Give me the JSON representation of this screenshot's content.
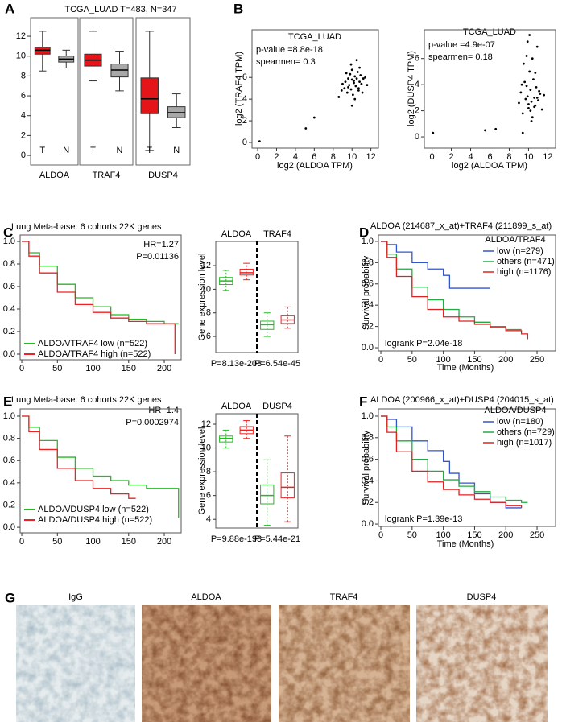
{
  "chart_data": [
    {
      "type": "box",
      "panel": "A",
      "title": "TCGA_LUAD T=483, N=347",
      "categories": [
        "ALDOA",
        "TRAF4",
        "DUSP4"
      ],
      "fill": true,
      "series": [
        {
          "name": "T",
          "color": "#e41418",
          "min": [
            8.5,
            7.5,
            0.5
          ],
          "q1": [
            10.2,
            9.0,
            4.2
          ],
          "median": [
            10.6,
            9.6,
            5.7
          ],
          "q3": [
            10.9,
            10.2,
            7.8
          ],
          "max": [
            12.5,
            12.5,
            12.5
          ]
        },
        {
          "name": "N",
          "color": "#a8a8a8",
          "min": [
            8.8,
            6.5,
            2.8
          ],
          "q1": [
            9.4,
            7.9,
            3.8
          ],
          "median": [
            9.7,
            8.6,
            4.3
          ],
          "q3": [
            10.0,
            9.2,
            4.9
          ],
          "max": [
            10.6,
            10.5,
            6.2
          ]
        }
      ],
      "ylim": [
        -0.97,
        13.87
      ],
      "yticks": [
        0,
        2,
        4,
        6,
        8,
        10,
        12
      ]
    },
    {
      "type": "scatter",
      "panel": "B",
      "title": "TCGA_LUAD",
      "xlabel": "log2 (ALDOA TPM)",
      "ylabel": "log2 (TRAF4 TPM)",
      "annotations": [
        "p-value =8.8e-18",
        "spearmen= 0.3"
      ],
      "color": "#000000",
      "x": [
        0.2,
        5.1,
        6.0,
        8.6,
        8.9,
        9.2,
        9.3,
        9.5,
        9.6,
        9.7,
        9.8,
        9.9,
        10.0,
        10.0,
        10.1,
        10.2,
        10.3,
        10.4,
        10.5,
        10.6,
        10.7,
        10.8,
        10.9,
        11.0,
        11.2,
        11.4,
        9.4,
        9.9,
        10.3,
        10.8,
        11.1,
        10.5,
        10.0,
        9.6,
        10.2,
        11.6,
        9.0,
        10.7
      ],
      "values": [
        0.1,
        1.3,
        2.3,
        4.2,
        4.8,
        5.0,
        5.6,
        4.6,
        5.9,
        5.3,
        6.3,
        4.9,
        5.8,
        6.7,
        4.4,
        5.5,
        6.1,
        5.2,
        5.9,
        6.5,
        4.8,
        5.6,
        6.2,
        5.4,
        5.9,
        6.0,
        6.4,
        7.2,
        4.0,
        6.9,
        4.6,
        7.6,
        3.4,
        5.1,
        5.7,
        5.3,
        5.4,
        5.0
      ],
      "xlim": [
        -0.6,
        12.8
      ],
      "xticks": [
        0,
        2,
        4,
        6,
        8,
        10,
        12
      ],
      "ylim": [
        -0.52,
        10.4
      ],
      "yticks": [
        0,
        2,
        4,
        6
      ]
    },
    {
      "type": "scatter",
      "title": "TCGA_LUAD",
      "xlabel": "log2 (ALDOA TPM)",
      "ylabel": "log2 (DUSP4 TPM)",
      "annotations": [
        "p-value =4.9e-07",
        "spearmen= 0.18"
      ],
      "color": "#000000",
      "x": [
        0.1,
        5.5,
        6.6,
        9.4,
        9.0,
        9.2,
        9.4,
        9.6,
        9.7,
        9.8,
        9.9,
        10.0,
        10.1,
        10.2,
        10.3,
        10.4,
        10.5,
        10.6,
        10.7,
        10.8,
        10.9,
        11.0,
        11.2,
        11.4,
        9.5,
        9.9,
        10.3,
        10.7,
        11.1,
        10.0,
        9.8,
        10.4,
        10.2,
        11.6,
        9.3,
        10.6,
        10.9,
        10.1
      ],
      "values": [
        0.3,
        0.5,
        0.6,
        0.3,
        2.6,
        3.4,
        1.8,
        4.2,
        2.9,
        6.2,
        3.1,
        2.2,
        5.0,
        3.6,
        2.7,
        1.5,
        4.4,
        3.0,
        2.4,
        3.8,
        6.9,
        2.8,
        3.3,
        2.1,
        5.6,
        7.3,
        1.2,
        4.9,
        3.5,
        2.5,
        3.9,
        6.0,
        2.0,
        3.2,
        4.0,
        2.3,
        3.0,
        7.8
      ],
      "xlim": [
        -0.8,
        12.8
      ],
      "xticks": [
        0,
        2,
        4,
        6,
        8,
        10,
        12
      ],
      "ylim": [
        -0.86,
        8.2
      ],
      "yticks": [
        0,
        2,
        4,
        6
      ]
    },
    {
      "type": "line",
      "panel": "C",
      "title": "Lung Meta-base: 6 cohorts 22K genes",
      "annotations": [
        "HR=1.27",
        "P=0.01136"
      ],
      "legend": "lower left",
      "series": [
        {
          "name": "ALDOA/TRAF4 low (n=522)",
          "color": "#22bb22",
          "x": [
            0,
            10,
            25,
            50,
            75,
            100,
            125,
            150,
            175,
            200,
            220
          ],
          "values": [
            1.0,
            0.9,
            0.78,
            0.62,
            0.5,
            0.42,
            0.35,
            0.31,
            0.29,
            0.27,
            0.27
          ]
        },
        {
          "name": "ALDOA/TRAF4 high (n=522)",
          "color": "#ee2222",
          "x": [
            0,
            10,
            25,
            50,
            75,
            100,
            125,
            150,
            175,
            215,
            215
          ],
          "values": [
            1.0,
            0.87,
            0.72,
            0.55,
            0.44,
            0.37,
            0.32,
            0.29,
            0.27,
            0.27,
            0.0
          ]
        }
      ],
      "xlim": [
        -2.3,
        223.7
      ],
      "xticks": [
        0,
        50,
        100,
        150,
        200
      ],
      "ylim": [
        -0.05,
        1.057
      ],
      "yticks": [
        {
          "value": 0,
          "label": "0.0"
        },
        0.2,
        0.4,
        0.6,
        0.8,
        {
          "value": 1,
          "label": "1.0"
        }
      ]
    },
    {
      "type": "box",
      "ylabel": "Gene expression level",
      "categories": [
        "ALDOA",
        "TRAF4"
      ],
      "footnotes": [
        "P=8.13e-203",
        "P=6.54e-45"
      ],
      "fill": false,
      "series": [
        {
          "color": "#22bb22",
          "min": [
            9.9,
            6.0
          ],
          "q1": [
            10.4,
            6.6
          ],
          "median": [
            10.7,
            7.0
          ],
          "q3": [
            11.0,
            7.3
          ],
          "max": [
            11.6,
            8.0
          ]
        },
        {
          "color": "#ee2222",
          "min": [
            10.8,
            6.7
          ],
          "q1": [
            11.2,
            7.1
          ],
          "median": [
            11.4,
            7.4
          ],
          "q3": [
            11.7,
            7.8
          ],
          "max": [
            12.2,
            8.5
          ]
        }
      ],
      "ylim": [
        4.64,
        14.05
      ],
      "yticks": [
        6,
        8,
        10,
        12
      ]
    },
    {
      "type": "line",
      "panel": "D",
      "title": "ALDOA (214687_x_at)+TRAF4 (211899_s_at)",
      "legend_title": "ALDOA/TRAF4",
      "legend": "upper right",
      "xlabel": "Time (Months)",
      "ylabel": "Survival probability",
      "annotations": [
        "logrank P=2.04e-18"
      ],
      "series": [
        {
          "name": "low (n=279)",
          "color": "#3355cc",
          "x": [
            0,
            10,
            25,
            50,
            75,
            100,
            110,
            125,
            150,
            175
          ],
          "values": [
            1.0,
            0.97,
            0.9,
            0.8,
            0.74,
            0.68,
            0.56,
            0.56,
            0.56,
            0.56
          ]
        },
        {
          "name": "others (n=471)",
          "color": "#22aa44",
          "x": [
            0,
            10,
            25,
            50,
            75,
            100,
            125,
            150,
            175,
            200,
            225
          ],
          "values": [
            1.0,
            0.88,
            0.74,
            0.57,
            0.45,
            0.36,
            0.29,
            0.24,
            0.2,
            0.17,
            0.17
          ]
        },
        {
          "name": "high (n=1176)",
          "color": "#dd2222",
          "x": [
            0,
            10,
            25,
            50,
            75,
            100,
            125,
            150,
            175,
            200,
            225,
            235
          ],
          "values": [
            1.0,
            0.85,
            0.67,
            0.48,
            0.36,
            0.29,
            0.25,
            0.22,
            0.19,
            0.16,
            0.13,
            0.08
          ]
        }
      ],
      "xlim": [
        -3.9,
        279.6
      ],
      "xticks": [
        0,
        50,
        100,
        150,
        200,
        250
      ],
      "ylim": [
        -0.03,
        1.06
      ],
      "yticks": [
        {
          "value": 0,
          "label": "0.0"
        },
        0.2,
        0.4,
        0.6,
        0.8,
        {
          "value": 1,
          "label": "1.0"
        }
      ]
    },
    {
      "type": "line",
      "panel": "E",
      "title": "Lung Meta-base: 6 cohorts 22K genes",
      "annotations": [
        "HR=1.4",
        "P=0.0002974"
      ],
      "legend": "lower left",
      "series": [
        {
          "name": "ALDOA/DUSP4 low (n=522)",
          "color": "#22bb22",
          "x": [
            0,
            10,
            25,
            50,
            75,
            100,
            125,
            150,
            175,
            200,
            220,
            220
          ],
          "values": [
            1.0,
            0.9,
            0.78,
            0.63,
            0.53,
            0.46,
            0.42,
            0.38,
            0.35,
            0.35,
            0.35,
            0.08
          ]
        },
        {
          "name": "ALDOA/DUSP4 high (n=522)",
          "color": "#ee2222",
          "x": [
            0,
            10,
            25,
            50,
            75,
            100,
            125,
            150,
            160
          ],
          "values": [
            1.0,
            0.86,
            0.7,
            0.53,
            0.42,
            0.35,
            0.3,
            0.26,
            0.26
          ]
        }
      ],
      "xlim": [
        -2.3,
        223.7
      ],
      "xticks": [
        0,
        50,
        100,
        150,
        200
      ],
      "ylim": [
        -0.05,
        1.065
      ],
      "yticks": [
        {
          "value": 0,
          "label": "0.0"
        },
        0.2,
        0.4,
        0.6,
        0.8,
        {
          "value": 1,
          "label": "1.0"
        }
      ]
    },
    {
      "type": "box",
      "ylabel": "Gene expression level",
      "categories": [
        "ALDOA",
        "DUSP4"
      ],
      "footnotes": [
        "P=9.88e-193",
        "P=5.44e-21"
      ],
      "fill": false,
      "series": [
        {
          "color": "#22bb22",
          "min": [
            10.0,
            3.5
          ],
          "q1": [
            10.5,
            5.3
          ],
          "median": [
            10.8,
            6.0
          ],
          "q3": [
            11.0,
            6.9
          ],
          "max": [
            11.5,
            9.0
          ]
        },
        {
          "color": "#ee2222",
          "min": [
            10.8,
            3.8
          ],
          "q1": [
            11.2,
            5.8
          ],
          "median": [
            11.5,
            6.7
          ],
          "q3": [
            11.8,
            7.9
          ],
          "max": [
            12.3,
            11.0
          ]
        }
      ],
      "ylim": [
        3.27,
        12.88
      ],
      "yticks": [
        4,
        6,
        8,
        10,
        12
      ]
    },
    {
      "type": "line",
      "panel": "F",
      "title": "ALDOA (200966_x_at)+DUSP4 (204015_s_at)",
      "legend_title": "ALDOA/DUSP4",
      "legend": "upper right",
      "xlabel": "Time (Months)",
      "ylabel": "Survival probability",
      "annotations": [
        "logrank P=1.39e-13"
      ],
      "series": [
        {
          "name": "low (n=180)",
          "color": "#3355cc",
          "x": [
            0,
            10,
            25,
            50,
            75,
            100,
            110,
            125,
            150,
            175,
            200,
            225
          ],
          "values": [
            1.0,
            0.97,
            0.9,
            0.77,
            0.68,
            0.58,
            0.47,
            0.38,
            0.28,
            0.2,
            0.15,
            0.15
          ]
        },
        {
          "name": "others (n=729)",
          "color": "#22aa44",
          "x": [
            0,
            10,
            25,
            50,
            75,
            100,
            125,
            150,
            175,
            200,
            225,
            235
          ],
          "values": [
            1.0,
            0.9,
            0.77,
            0.6,
            0.49,
            0.41,
            0.35,
            0.3,
            0.25,
            0.22,
            0.2,
            0.2
          ]
        },
        {
          "name": "high (n=1017)",
          "color": "#dd2222",
          "x": [
            0,
            10,
            25,
            50,
            75,
            100,
            125,
            150,
            175,
            200,
            225
          ],
          "values": [
            1.0,
            0.85,
            0.67,
            0.49,
            0.39,
            0.32,
            0.27,
            0.23,
            0.2,
            0.17,
            0.15
          ]
        }
      ],
      "xlim": [
        -3.9,
        279.6
      ],
      "xticks": [
        0,
        50,
        100,
        150,
        200,
        250
      ],
      "ylim": [
        -0.022,
        1.067
      ],
      "yticks": [
        {
          "value": 0,
          "label": "0.0"
        },
        0.2,
        0.4,
        0.6,
        0.8,
        {
          "value": 1,
          "label": "1.0"
        }
      ]
    }
  ],
  "panel_g": {
    "panel": "G",
    "labels": [
      "IgG",
      "ALDOA",
      "TRAF4",
      "DUSP4"
    ]
  }
}
